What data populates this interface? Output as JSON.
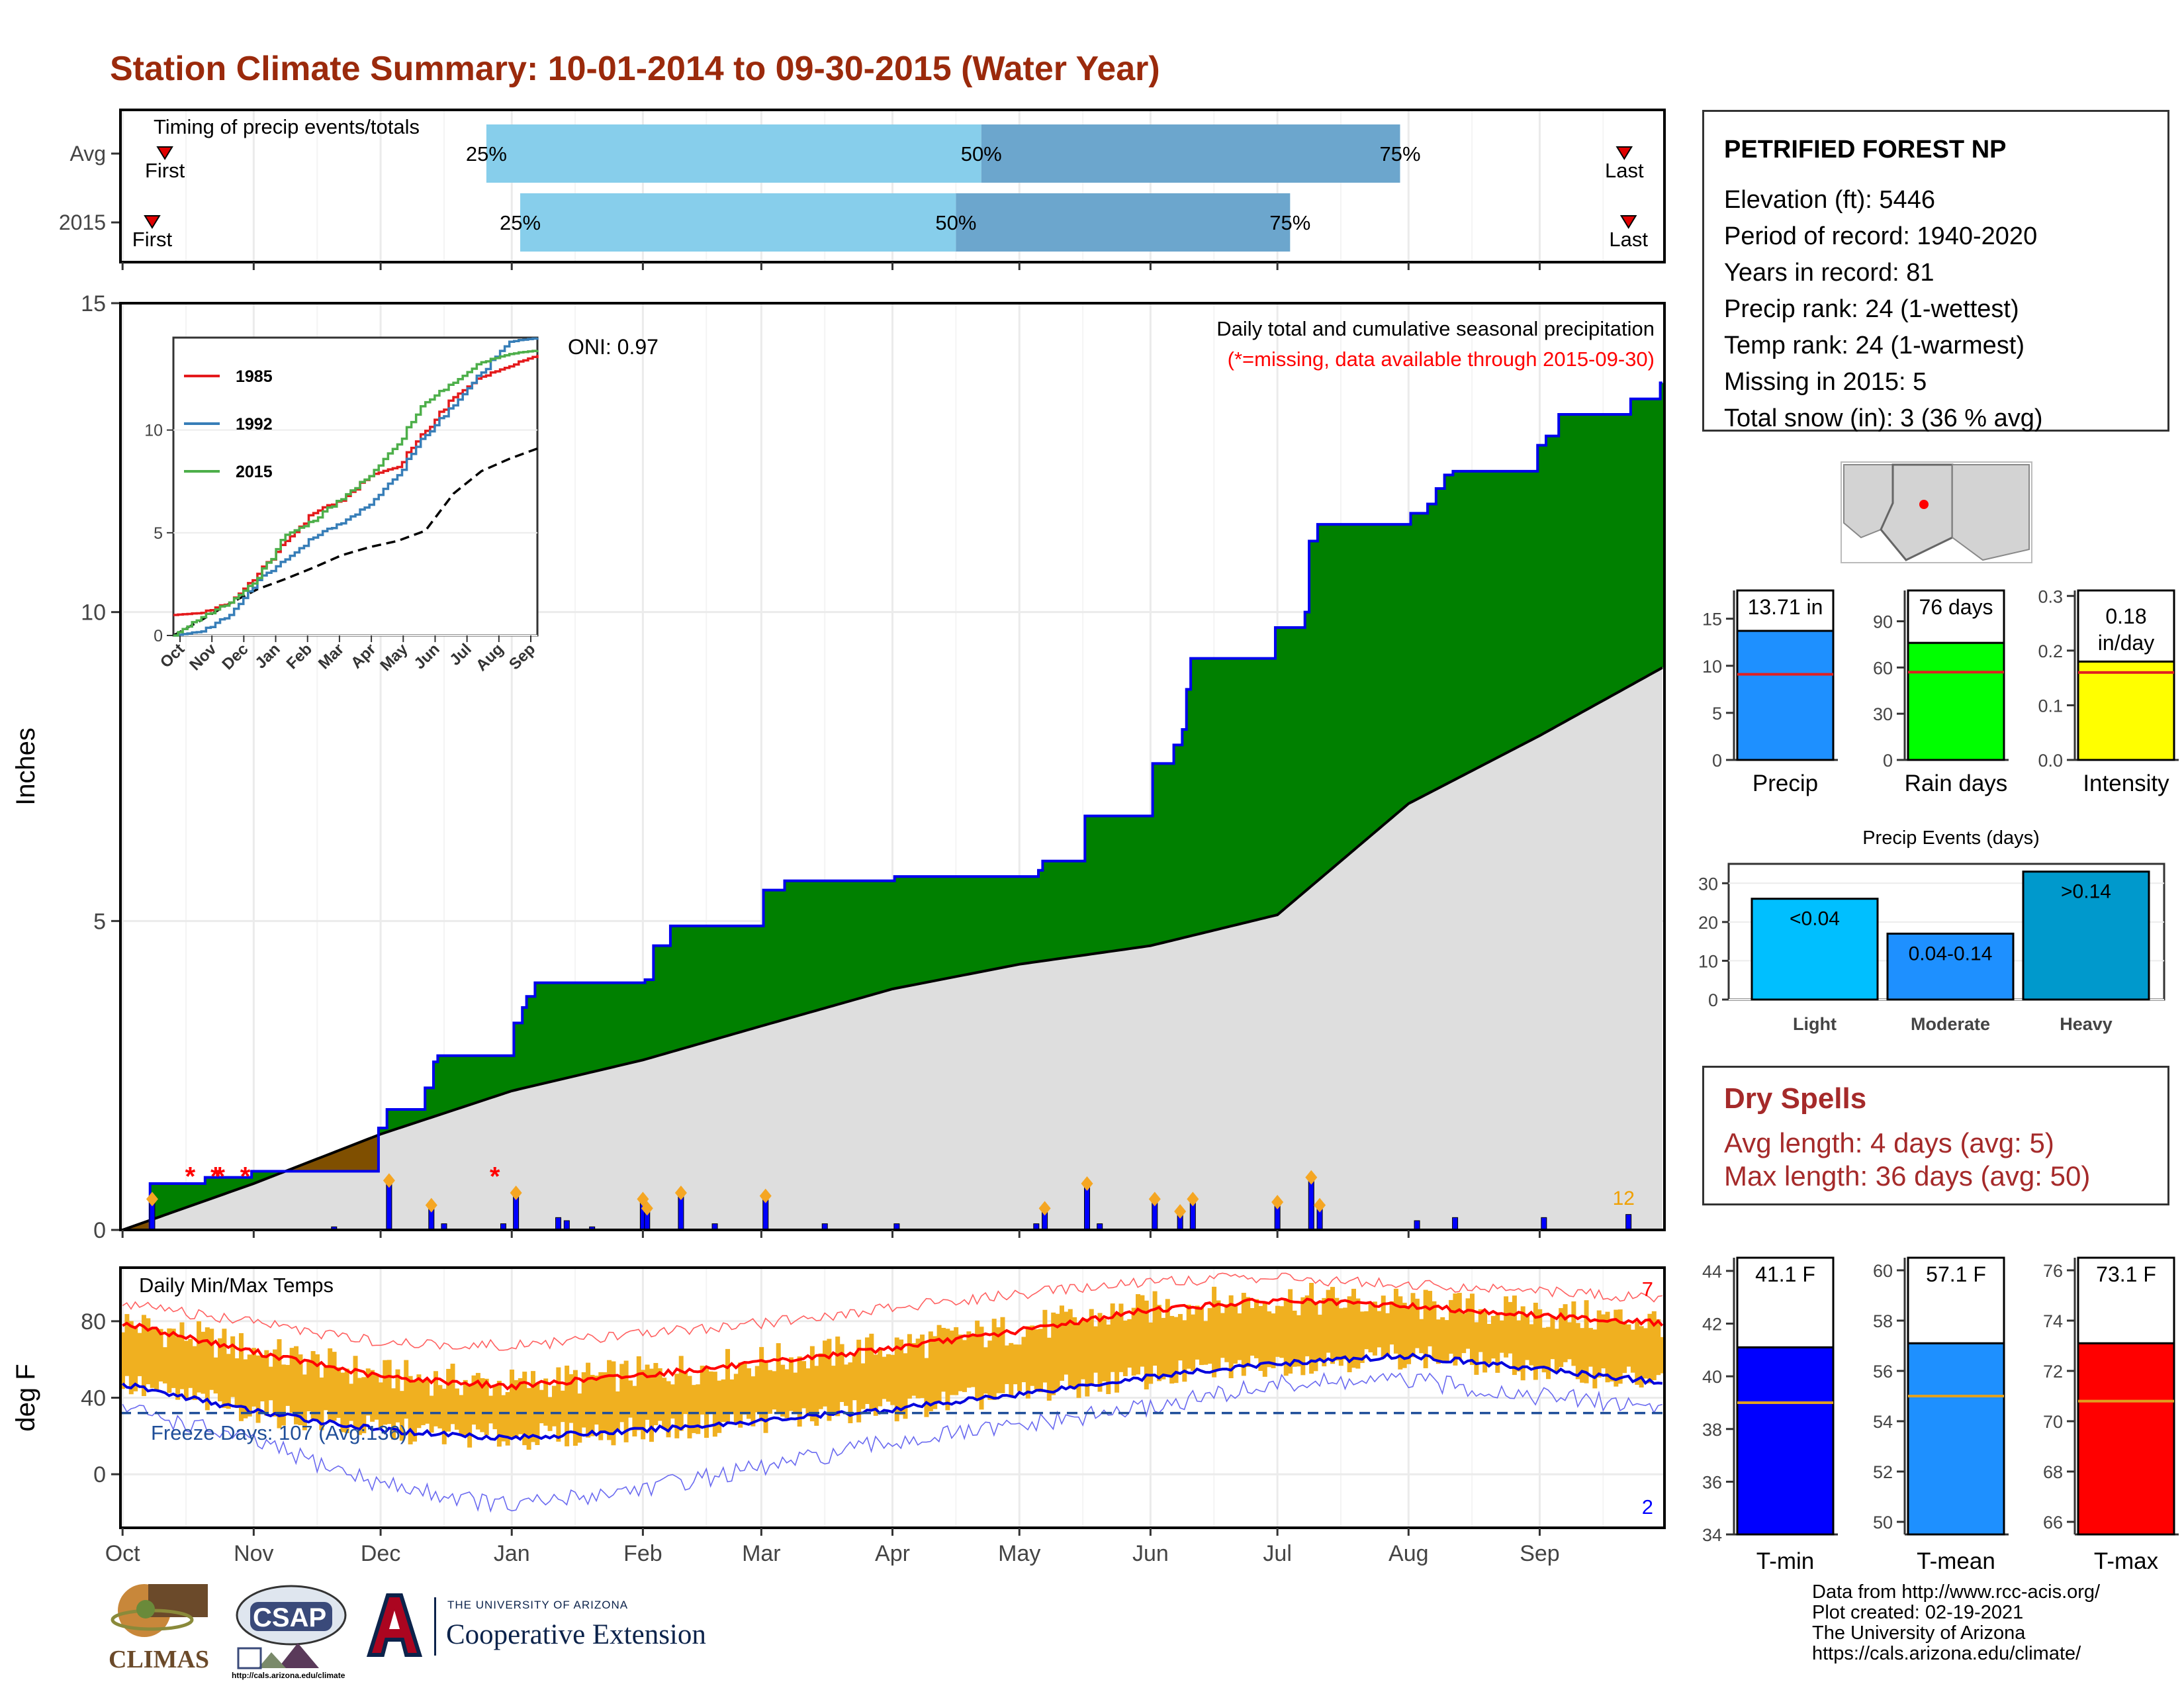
{
  "title": "Station Climate Summary: 10-01-2014 to 09-30-2015 (Water Year)",
  "site": {
    "name": "PETRIFIED FOREST NP",
    "lines": [
      "Elevation (ft): 5446",
      "Period of record: 1940-2020",
      "Years in record: 81",
      "Precip rank: 24 (1-wettest)",
      "Temp rank: 24 (1-warmest)",
      "Missing in 2015: 5",
      "Total snow (in): 3 (36 % avg)"
    ]
  },
  "dry_spells": {
    "title": "Dry Spells",
    "avg": "Avg length: 4 days (avg: 5)",
    "max": "Max length: 36 days (avg: 50)"
  },
  "credits": [
    "Data from http://www.rcc-acis.org/",
    "Plot created: 02-19-2021",
    "The University of Arizona",
    "https://cals.arizona.edu/climate/"
  ],
  "logos": {
    "climas": "CLIMAS",
    "csap": "CSAP",
    "csap_url": "http://cals.arizona.edu/climate",
    "ua_small": "THE UNIVERSITY OF ARIZONA",
    "ua_big": "Cooperative Extension"
  },
  "colors": {
    "title": "#9b2a0c",
    "above_normal_fill": "#008000",
    "below_normal_fill": "#7f4f00",
    "normal_fill": "#dedede",
    "cumulative_line": "#0000ee",
    "quartile_light": "#87ceeb",
    "quartile_dark": "#6ca6cd",
    "tmax_avg": "#ff0000",
    "tmin_avg": "#0000dd",
    "daily_range": "#f0b020",
    "dry_spells": "#a52a2a"
  },
  "chart_data": [
    {
      "id": "timing",
      "type": "bar",
      "title": "Timing of precip events/totals",
      "rows": [
        {
          "label": "Avg",
          "first": "Oct 11",
          "p25": "Dec 26",
          "p50": "Apr 22",
          "p75": "Jul 30",
          "last": "Sep 21"
        },
        {
          "label": "2015",
          "first": "Oct 8",
          "p25": "Jan 3",
          "p50": "Apr 16",
          "p75": "Jul 4",
          "last": "Sep 22"
        }
      ],
      "labels": {
        "first": "First",
        "last": "Last",
        "p25": "25%",
        "p50": "50%",
        "p75": "75%"
      }
    },
    {
      "id": "precip",
      "type": "area",
      "ylabel": "Inches",
      "ylim": [
        0,
        15
      ],
      "yticks": [
        0,
        5,
        10,
        15
      ],
      "xticks": [
        "Oct",
        "Nov",
        "Dec",
        "Jan",
        "Feb",
        "Mar",
        "Apr",
        "May",
        "Jun",
        "Jul",
        "Aug",
        "Sep"
      ],
      "annotation_title": "Daily total and cumulative seasonal precipitation",
      "annotation_missing": "(*=missing, data available through 2015-09-30)",
      "oni": "ONI: 0.97",
      "count_label": "12",
      "cumulative_2015": [
        [
          "Oct 1",
          0.0
        ],
        [
          "Oct 7",
          0.0
        ],
        [
          "Oct 8",
          0.75
        ],
        [
          "Oct 20",
          0.75
        ],
        [
          "Oct 21",
          0.85
        ],
        [
          "Nov 1",
          0.95
        ],
        [
          "Nov 30",
          0.95
        ],
        [
          "Dec 1",
          1.65
        ],
        [
          "Dec 3",
          1.95
        ],
        [
          "Dec 12",
          2.3
        ],
        [
          "Dec 14",
          2.72
        ],
        [
          "Dec 15",
          2.82
        ],
        [
          "Jan 1",
          2.82
        ],
        [
          "Jan 2",
          3.35
        ],
        [
          "Jan 4",
          3.6
        ],
        [
          "Jan 5",
          3.78
        ],
        [
          "Jan 7",
          4.0
        ],
        [
          "Feb 1",
          4.0
        ],
        [
          "Feb 2",
          4.05
        ],
        [
          "Feb 4",
          4.6
        ],
        [
          "Feb 8",
          4.92
        ],
        [
          "Mar 1",
          4.92
        ],
        [
          "Mar 2",
          5.5
        ],
        [
          "Mar 7",
          5.65
        ],
        [
          "Apr 1",
          5.65
        ],
        [
          "Apr 2",
          5.72
        ],
        [
          "May 5",
          5.72
        ],
        [
          "May 6",
          5.82
        ],
        [
          "May 7",
          5.97
        ],
        [
          "May 17",
          6.7
        ],
        [
          "Jun 1",
          6.7
        ],
        [
          "Jun 2",
          7.55
        ],
        [
          "Jun 7",
          7.85
        ],
        [
          "Jun 9",
          8.1
        ],
        [
          "Jun 10",
          8.75
        ],
        [
          "Jun 11",
          9.25
        ],
        [
          "Jun 30",
          9.25
        ],
        [
          "Jul 1",
          9.75
        ],
        [
          "Jul 8",
          10.0
        ],
        [
          "Jul 9",
          11.15
        ],
        [
          "Jul 11",
          11.42
        ],
        [
          "Jul 12",
          11.42
        ],
        [
          "Aug 1",
          11.42
        ],
        [
          "Aug 2",
          11.6
        ],
        [
          "Aug 6",
          11.75
        ],
        [
          "Aug 8",
          12.0
        ],
        [
          "Aug 10",
          12.22
        ],
        [
          "Aug 12",
          12.28
        ],
        [
          "Aug 31",
          12.28
        ],
        [
          "Sep 1",
          12.7
        ],
        [
          "Sep 3",
          12.85
        ],
        [
          "Sep 6",
          13.2
        ],
        [
          "Sep 22",
          13.2
        ],
        [
          "Sep 23",
          13.45
        ],
        [
          "Sep 30",
          13.71
        ]
      ],
      "normal_cumulative": [
        [
          "Oct 1",
          0.0
        ],
        [
          "Nov 1",
          0.75
        ],
        [
          "Dec 1",
          1.55
        ],
        [
          "Jan 1",
          2.25
        ],
        [
          "Feb 1",
          2.75
        ],
        [
          "Mar 1",
          3.3
        ],
        [
          "Apr 1",
          3.9
        ],
        [
          "May 1",
          4.3
        ],
        [
          "Jun 1",
          4.6
        ],
        [
          "Jul 1",
          5.1
        ],
        [
          "Aug 1",
          6.9
        ],
        [
          "Sep 1",
          8.0
        ],
        [
          "Sep 30",
          9.1
        ]
      ],
      "daily_precip": [
        [
          "Oct 8",
          0.5
        ],
        [
          "Nov 20",
          0.05
        ],
        [
          "Dec 3",
          0.8
        ],
        [
          "Dec 13",
          0.4
        ],
        [
          "Dec 16",
          0.1
        ],
        [
          "Dec 30",
          0.1
        ],
        [
          "Jan 2",
          0.6
        ],
        [
          "Jan 12",
          0.2
        ],
        [
          "Jan 14",
          0.15
        ],
        [
          "Jan 20",
          0.05
        ],
        [
          "Feb 1",
          0.5
        ],
        [
          "Feb 2",
          0.35
        ],
        [
          "Feb 10",
          0.6
        ],
        [
          "Feb 18",
          0.1
        ],
        [
          "Mar 2",
          0.55
        ],
        [
          "Mar 16",
          0.1
        ],
        [
          "Apr 2",
          0.1
        ],
        [
          "May 5",
          0.1
        ],
        [
          "May 7",
          0.35
        ],
        [
          "May 17",
          0.75
        ],
        [
          "May 20",
          0.1
        ],
        [
          "Jun 2",
          0.5
        ],
        [
          "Jun 8",
          0.3
        ],
        [
          "Jun 11",
          0.5
        ],
        [
          "Jul 1",
          0.45
        ],
        [
          "Jul 9",
          0.85
        ],
        [
          "Jul 11",
          0.4
        ],
        [
          "Aug 3",
          0.15
        ],
        [
          "Aug 12",
          0.2
        ],
        [
          "Sep 2",
          0.2
        ],
        [
          "Sep 22",
          0.25
        ]
      ],
      "missing_days": [
        "Oct 17",
        "Oct 23",
        "Oct 24",
        "Oct 30",
        "Dec 28"
      ]
    },
    {
      "id": "inset",
      "type": "line",
      "ylim": [
        0,
        14.5
      ],
      "yticks": [
        0,
        5,
        10
      ],
      "xticks": [
        "Oct",
        "Nov",
        "Dec",
        "Jan",
        "Feb",
        "Mar",
        "Apr",
        "May",
        "Jun",
        "Jul",
        "Aug",
        "Sep"
      ],
      "series": [
        {
          "name": "1985",
          "color": "#e41a1c",
          "values": [
            1.0,
            1.1,
            1.6,
            3.0,
            4.6,
            6.0,
            6.6,
            7.8,
            8.2,
            10.0,
            11.6,
            12.6,
            13.1,
            13.7
          ]
        },
        {
          "name": "1992",
          "color": "#377eb8",
          "values": [
            0.0,
            0.2,
            1.0,
            2.7,
            3.7,
            4.8,
            5.5,
            6.4,
            7.8,
            9.8,
            11.2,
            12.8,
            14.3,
            14.5
          ]
        },
        {
          "name": "2015",
          "color": "#4daf4a",
          "values": [
            0.0,
            0.9,
            1.6,
            2.8,
            4.9,
            5.6,
            6.7,
            7.8,
            9.3,
            11.4,
            12.3,
            13.3,
            13.7,
            13.9
          ]
        }
      ],
      "normal": [
        0.0,
        0.75,
        1.55,
        2.25,
        2.75,
        3.3,
        3.9,
        4.3,
        4.6,
        5.1,
        6.9,
        8.0,
        8.6,
        9.1
      ]
    },
    {
      "id": "temps",
      "type": "line",
      "title": "Daily Min/Max Temps",
      "ylabel": "deg F",
      "ylim": [
        -28,
        108
      ],
      "yticks": [
        0,
        40,
        80
      ],
      "freeze_line": 32,
      "freeze_label": "Freeze Days: 107 (Avg:136)",
      "count_max": "7",
      "count_min": "2",
      "tmax_avg": [
        [
          "Oct 1",
          79
        ],
        [
          "Nov 1",
          64
        ],
        [
          "Dec 1",
          51
        ],
        [
          "Jan 1",
          46
        ],
        [
          "Feb 1",
          52
        ],
        [
          "Mar 1",
          58
        ],
        [
          "Apr 1",
          66
        ],
        [
          "May 1",
          75
        ],
        [
          "Jun 1",
          86
        ],
        [
          "Jul 1",
          91
        ],
        [
          "Aug 1",
          88
        ],
        [
          "Sep 1",
          83
        ],
        [
          "Sep 30",
          79
        ]
      ],
      "tmin_avg": [
        [
          "Oct 1",
          47
        ],
        [
          "Nov 1",
          33
        ],
        [
          "Dec 1",
          23
        ],
        [
          "Jan 1",
          19
        ],
        [
          "Feb 1",
          23
        ],
        [
          "Mar 1",
          28
        ],
        [
          "Apr 1",
          34
        ],
        [
          "May 1",
          42
        ],
        [
          "Jun 1",
          51
        ],
        [
          "Jul 1",
          58
        ],
        [
          "Aug 1",
          62
        ],
        [
          "Sep 1",
          55
        ],
        [
          "Sep 30",
          48
        ]
      ],
      "tmax_record": [
        [
          "Oct 1",
          92
        ],
        [
          "Nov 1",
          82
        ],
        [
          "Dec 1",
          72
        ],
        [
          "Jan 1",
          70
        ],
        [
          "Feb 1",
          76
        ],
        [
          "Mar 1",
          82
        ],
        [
          "Apr 1",
          90
        ],
        [
          "May 1",
          97
        ],
        [
          "Jun 1",
          104
        ],
        [
          "Jul 1",
          106
        ],
        [
          "Aug 1",
          102
        ],
        [
          "Sep 1",
          99
        ],
        [
          "Sep 30",
          94
        ]
      ],
      "tmin_record": [
        [
          "Oct 1",
          30
        ],
        [
          "Nov 1",
          12
        ],
        [
          "Dec 1",
          -10
        ],
        [
          "Jan 1",
          -22
        ],
        [
          "Feb 1",
          -12
        ],
        [
          "Mar 1",
          -2
        ],
        [
          "Apr 1",
          12
        ],
        [
          "May 1",
          20
        ],
        [
          "Jun 1",
          30
        ],
        [
          "Jul 1",
          42
        ],
        [
          "Aug 1",
          44
        ],
        [
          "Sep 1",
          36
        ],
        [
          "Sep 30",
          30
        ]
      ]
    },
    {
      "id": "summary_precip",
      "type": "bar",
      "categories": [
        "Precip",
        "Rain days",
        "Intensity"
      ],
      "panels": [
        {
          "label": "Precip",
          "value": 13.71,
          "avg": 9.1,
          "text": "13.71 in",
          "ylim": [
            0,
            18
          ],
          "yticks": [
            0,
            5,
            10,
            15
          ],
          "color": "#1e90ff"
        },
        {
          "label": "Rain days",
          "value": 76,
          "avg": 57,
          "text": "76 days",
          "ylim": [
            0,
            110
          ],
          "yticks": [
            0,
            30,
            60,
            90
          ],
          "color": "#00ff00"
        },
        {
          "label": "Intensity",
          "value": 0.18,
          "avg": 0.16,
          "text": "0.18 in/day",
          "ylim": [
            0,
            0.31
          ],
          "yticks": [
            0.0,
            0.1,
            0.2,
            0.3
          ],
          "color": "#ffff00"
        }
      ]
    },
    {
      "id": "precip_events",
      "type": "bar",
      "title": "Precip Events (days)",
      "categories": [
        "Light",
        "Moderate",
        "Heavy"
      ],
      "labels": [
        "<0.04",
        "0.04-0.14",
        ">0.14"
      ],
      "values": [
        26,
        17,
        33
      ],
      "ylim": [
        0,
        35
      ],
      "yticks": [
        0,
        10,
        20,
        30
      ],
      "colors": [
        "#00bfff",
        "#1e90ff",
        "#0099cc"
      ]
    },
    {
      "id": "summary_temp",
      "type": "bar",
      "categories": [
        "T-min",
        "T-mean",
        "T-max"
      ],
      "panels": [
        {
          "label": "T-min",
          "value": 41.1,
          "avg": 39.0,
          "text": "41.1 F",
          "ylim": [
            34,
            44.5
          ],
          "yticks": [
            34,
            36,
            38,
            40,
            42,
            44
          ],
          "color": "#0000ff"
        },
        {
          "label": "T-mean",
          "value": 57.1,
          "avg": 55.0,
          "text": "57.1 F",
          "ylim": [
            49.5,
            60.5
          ],
          "yticks": [
            50,
            52,
            54,
            56,
            58,
            60
          ],
          "color": "#1e90ff"
        },
        {
          "label": "T-max",
          "value": 73.1,
          "avg": 70.8,
          "text": "73.1 F",
          "ylim": [
            65.5,
            76.5
          ],
          "yticks": [
            66,
            68,
            70,
            72,
            74,
            76
          ],
          "color": "#ff0000"
        }
      ]
    }
  ]
}
